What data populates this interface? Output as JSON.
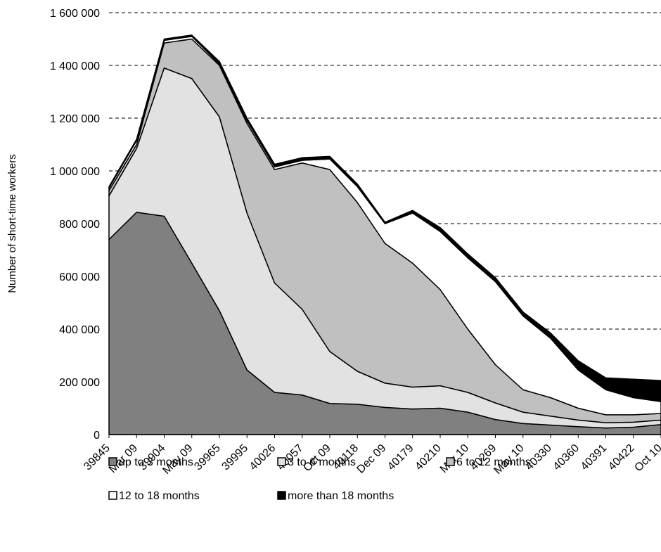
{
  "chart_data": {
    "type": "stacked_area",
    "y_label": "Number of short-time workers",
    "categories": [
      "39845",
      "Mar 09",
      "39904",
      "May 09",
      "39965",
      "39995",
      "40026",
      "40057",
      "Oct 09",
      "40118",
      "Dec 09",
      "40179",
      "40210",
      "Mar 10",
      "40269",
      "May 10",
      "40330",
      "40360",
      "40391",
      "40422",
      "Oct 10"
    ],
    "series": [
      {
        "name": "up to 3 months",
        "color": "#808080",
        "values": [
          740000,
          843000,
          828000,
          650000,
          470000,
          245000,
          160000,
          150000,
          118000,
          115000,
          103000,
          97000,
          100000,
          85000,
          57000,
          42000,
          36000,
          30000,
          25000,
          28000,
          38000
        ]
      },
      {
        "name": "3 to 6 months",
        "color": "#e2e2e2",
        "values": [
          165000,
          242000,
          562000,
          700000,
          735000,
          595000,
          415000,
          325000,
          197000,
          125000,
          92000,
          83000,
          85000,
          75000,
          63000,
          43000,
          34000,
          25000,
          20000,
          19000,
          17000
        ]
      },
      {
        "name": "6 to 12 months",
        "color": "#c0c0c0",
        "values": [
          20000,
          15000,
          95000,
          150000,
          195000,
          340000,
          430000,
          555000,
          690000,
          640000,
          530000,
          470000,
          365000,
          240000,
          145000,
          85000,
          70000,
          45000,
          30000,
          28000,
          25000
        ]
      },
      {
        "name": "12 to 18 months",
        "color": "#ffffff",
        "values": [
          10000,
          15000,
          10000,
          10000,
          5000,
          10000,
          10000,
          10000,
          40000,
          60000,
          75000,
          190000,
          220000,
          270000,
          315000,
          280000,
          225000,
          145000,
          95000,
          65000,
          45000
        ]
      },
      {
        "name": "more than 18 months",
        "color": "#000000",
        "values": [
          5000,
          5000,
          5000,
          5000,
          10000,
          10000,
          10000,
          10000,
          10000,
          10000,
          5000,
          10000,
          15000,
          15000,
          15000,
          15000,
          20000,
          35000,
          45000,
          70000,
          80000
        ]
      }
    ],
    "ylim": [
      0,
      1600000
    ],
    "yticks": [
      0,
      {
        "value": 200000,
        "label": "200 000"
      },
      {
        "value": 400000,
        "label": "400 000"
      },
      {
        "value": 600000,
        "label": "600 000"
      },
      {
        "value": 800000,
        "label": "800 000"
      },
      {
        "value": 1000000,
        "label": "1 000 000"
      },
      {
        "value": 1200000,
        "label": "1 200 000"
      },
      {
        "value": 1400000,
        "label": "1 400 000"
      },
      {
        "value": 1600000,
        "label": "1 600 000"
      }
    ],
    "grid": true
  }
}
